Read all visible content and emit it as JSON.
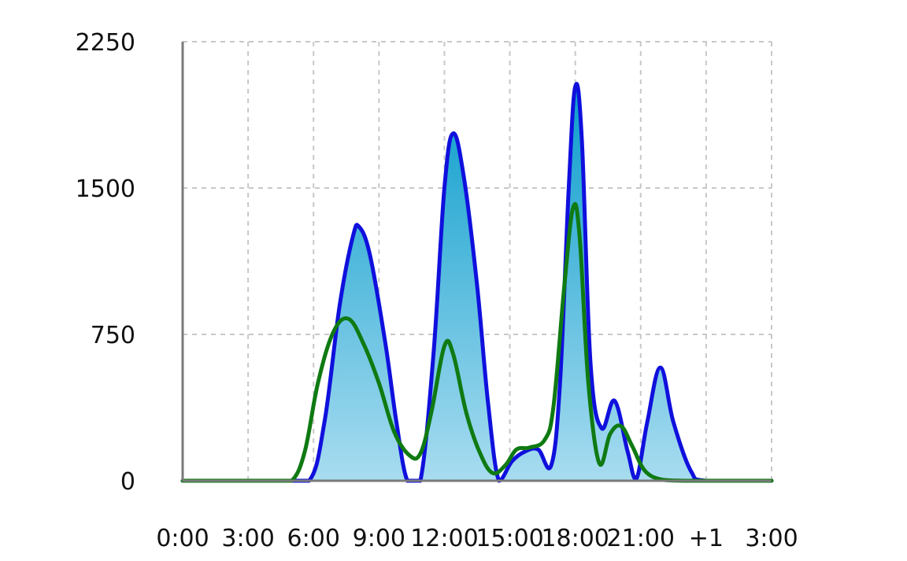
{
  "chart_data": {
    "type": "area",
    "title": "",
    "xlabel": "",
    "ylabel": "",
    "x_ticks": [
      0,
      3,
      6,
      9,
      12,
      15,
      18,
      21,
      24,
      27
    ],
    "x_tick_labels": [
      "0:00",
      "3:00",
      "6:00",
      "9:00",
      "12:00",
      "15:00",
      "18:00",
      "21:00",
      "+1",
      "3:00"
    ],
    "xlim": [
      0,
      27
    ],
    "y_ticks": [
      0,
      750,
      1500,
      2250
    ],
    "y_tick_labels": [
      "0",
      "750",
      "1500",
      "2250"
    ],
    "ylim": [
      0,
      2250
    ],
    "grid": true,
    "legend": "none",
    "series": [
      {
        "style": "area",
        "color": "#1010dd",
        "fill_top": "#0a9dcc",
        "fill_bottom": "#a8dcf0",
        "points": [
          [
            0,
            0
          ],
          [
            3,
            0
          ],
          [
            4.4,
            0
          ],
          [
            5.8,
            0
          ],
          [
            6.5,
            300
          ],
          [
            7.2,
            900
          ],
          [
            7.8,
            1250
          ],
          [
            8.1,
            1300
          ],
          [
            8.6,
            1150
          ],
          [
            9.3,
            700
          ],
          [
            9.8,
            300
          ],
          [
            10.3,
            0
          ],
          [
            10.9,
            0
          ],
          [
            11.5,
            650
          ],
          [
            12.0,
            1500
          ],
          [
            12.4,
            1780
          ],
          [
            12.9,
            1550
          ],
          [
            13.5,
            1000
          ],
          [
            14.0,
            400
          ],
          [
            14.5,
            0
          ],
          [
            15.1,
            100
          ],
          [
            15.7,
            150
          ],
          [
            16.3,
            160
          ],
          [
            16.9,
            80
          ],
          [
            17.3,
            500
          ],
          [
            17.7,
            1500
          ],
          [
            18.0,
            2020
          ],
          [
            18.3,
            1750
          ],
          [
            18.7,
            600
          ],
          [
            19.2,
            270
          ],
          [
            19.8,
            410
          ],
          [
            20.4,
            150
          ],
          [
            20.8,
            10
          ],
          [
            21.3,
            300
          ],
          [
            21.9,
            580
          ],
          [
            22.5,
            300
          ],
          [
            23.3,
            50
          ],
          [
            24.0,
            0
          ],
          [
            27,
            0
          ]
        ]
      },
      {
        "style": "line",
        "color": "#0f7a12",
        "points": [
          [
            0,
            0
          ],
          [
            3,
            0
          ],
          [
            4.2,
            0
          ],
          [
            5.0,
            0
          ],
          [
            5.6,
            150
          ],
          [
            6.2,
            500
          ],
          [
            6.9,
            760
          ],
          [
            7.6,
            830
          ],
          [
            8.3,
            700
          ],
          [
            9.0,
            500
          ],
          [
            9.7,
            250
          ],
          [
            10.4,
            130
          ],
          [
            10.9,
            140
          ],
          [
            11.4,
            350
          ],
          [
            12.0,
            690
          ],
          [
            12.4,
            650
          ],
          [
            13.0,
            350
          ],
          [
            13.6,
            150
          ],
          [
            14.2,
            40
          ],
          [
            14.8,
            80
          ],
          [
            15.3,
            160
          ],
          [
            15.9,
            170
          ],
          [
            16.6,
            210
          ],
          [
            17.0,
            380
          ],
          [
            17.5,
            1000
          ],
          [
            17.9,
            1400
          ],
          [
            18.2,
            1250
          ],
          [
            18.6,
            500
          ],
          [
            19.1,
            90
          ],
          [
            19.6,
            240
          ],
          [
            20.1,
            280
          ],
          [
            20.6,
            180
          ],
          [
            21.2,
            50
          ],
          [
            22.0,
            5
          ],
          [
            23.0,
            0
          ],
          [
            24.0,
            0
          ],
          [
            27,
            0
          ]
        ]
      }
    ]
  }
}
